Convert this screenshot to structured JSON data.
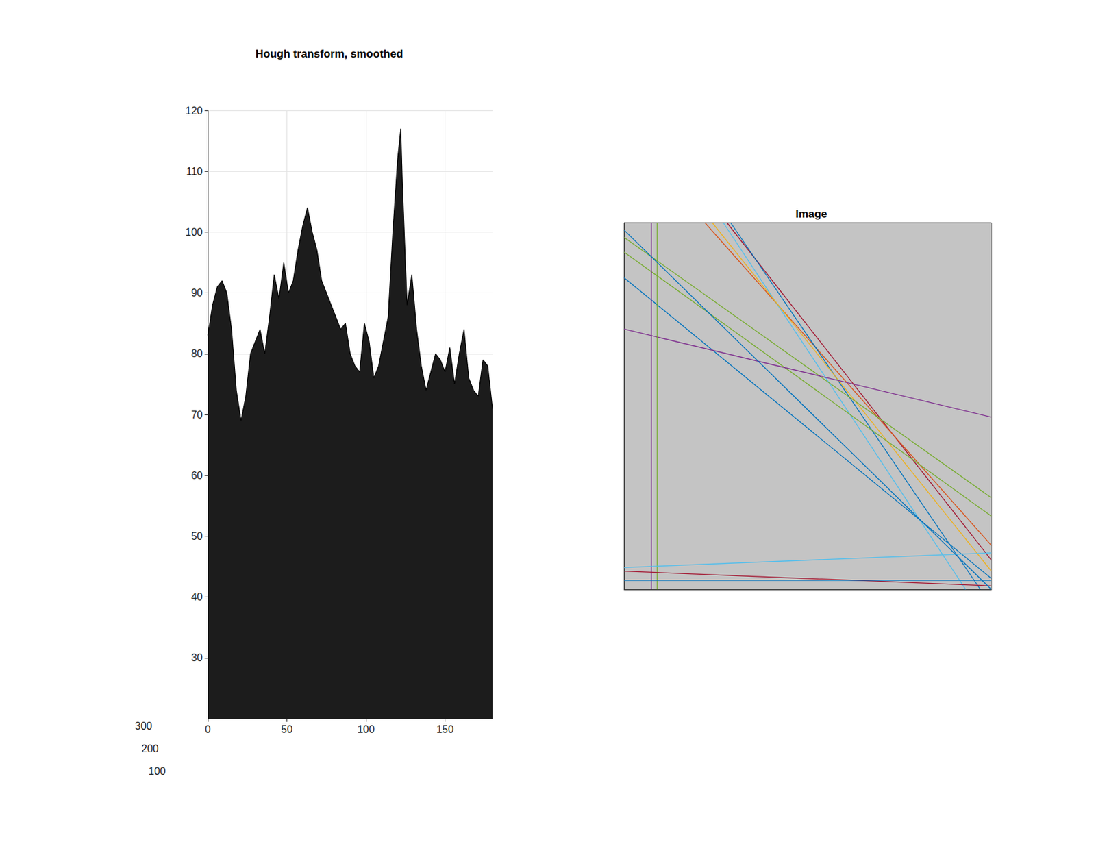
{
  "chart_data": [
    {
      "type": "area",
      "title": "Hough transform, smoothed",
      "color": "#000000",
      "x": [
        0,
        3,
        6,
        9,
        12,
        15,
        18,
        21,
        24,
        27,
        30,
        33,
        36,
        39,
        42,
        45,
        48,
        51,
        54,
        57,
        60,
        63,
        66,
        69,
        72,
        75,
        78,
        81,
        84,
        87,
        90,
        93,
        96,
        99,
        102,
        105,
        108,
        111,
        114,
        117,
        120,
        122,
        123,
        126,
        129,
        132,
        135,
        138,
        141,
        144,
        147,
        150,
        153,
        156,
        159,
        162,
        165,
        168,
        171,
        174,
        177,
        180
      ],
      "values": [
        83,
        88,
        91,
        92,
        90,
        84,
        74,
        69,
        73,
        80,
        82,
        84,
        80,
        86,
        93,
        89,
        95,
        90,
        92,
        97,
        101,
        104,
        100,
        97,
        92,
        90,
        88,
        86,
        84,
        85,
        80,
        78,
        77,
        85,
        82,
        76,
        78,
        82,
        86,
        100,
        112,
        117,
        108,
        88,
        93,
        84,
        78,
        74,
        77,
        80,
        79,
        77,
        81,
        75,
        80,
        84,
        76,
        74,
        73,
        79,
        78,
        71
      ],
      "xlim": [
        0,
        180
      ],
      "xticks": [
        0,
        50,
        100,
        150
      ],
      "ylim": [
        20,
        120
      ],
      "yticks": [
        30,
        40,
        50,
        60,
        70,
        80,
        90,
        100,
        110,
        120
      ],
      "zticks": [
        100,
        200,
        300
      ],
      "grid": true
    },
    {
      "type": "line",
      "title": "Image",
      "xlim": [
        0,
        100
      ],
      "ylim": [
        0,
        100
      ],
      "tick_labels": false,
      "grid": false,
      "series": [
        {
          "color": "#A2142F",
          "x": [
            28,
            100
          ],
          "values": [
            100,
            8
          ]
        },
        {
          "color": "#D95319",
          "x": [
            22,
            100
          ],
          "values": [
            100,
            12
          ]
        },
        {
          "color": "#0072BD",
          "x": [
            29,
            97
          ],
          "values": [
            100,
            0
          ]
        },
        {
          "color": "#4DBEEE",
          "x": [
            27,
            93
          ],
          "values": [
            100,
            0
          ]
        },
        {
          "color": "#EDB120",
          "x": [
            24,
            100
          ],
          "values": [
            100,
            5
          ]
        },
        {
          "color": "#77AC30",
          "x": [
            0,
            100
          ],
          "values": [
            92,
            20
          ]
        },
        {
          "color": "#77AC30",
          "x": [
            0,
            100
          ],
          "values": [
            96,
            25
          ]
        },
        {
          "color": "#0072BD",
          "x": [
            0,
            100
          ],
          "values": [
            85,
            3
          ]
        },
        {
          "color": "#7E2F8E",
          "x": [
            0,
            100
          ],
          "values": [
            71,
            47
          ]
        },
        {
          "color": "#7E2F8E",
          "x": [
            7.4,
            7.4
          ],
          "values": [
            100,
            0
          ]
        },
        {
          "color": "#77AC30",
          "x": [
            9,
            9
          ],
          "values": [
            100,
            0
          ]
        },
        {
          "color": "#4DBEEE",
          "x": [
            0,
            100
          ],
          "values": [
            6,
            10
          ]
        },
        {
          "color": "#A2142F",
          "x": [
            0,
            100
          ],
          "values": [
            5,
            1
          ]
        },
        {
          "color": "#0072BD",
          "x": [
            0,
            100
          ],
          "values": [
            2.5,
            2.5
          ]
        },
        {
          "color": "#0072BD",
          "x": [
            0,
            100
          ],
          "values": [
            98,
            0
          ]
        }
      ]
    }
  ]
}
